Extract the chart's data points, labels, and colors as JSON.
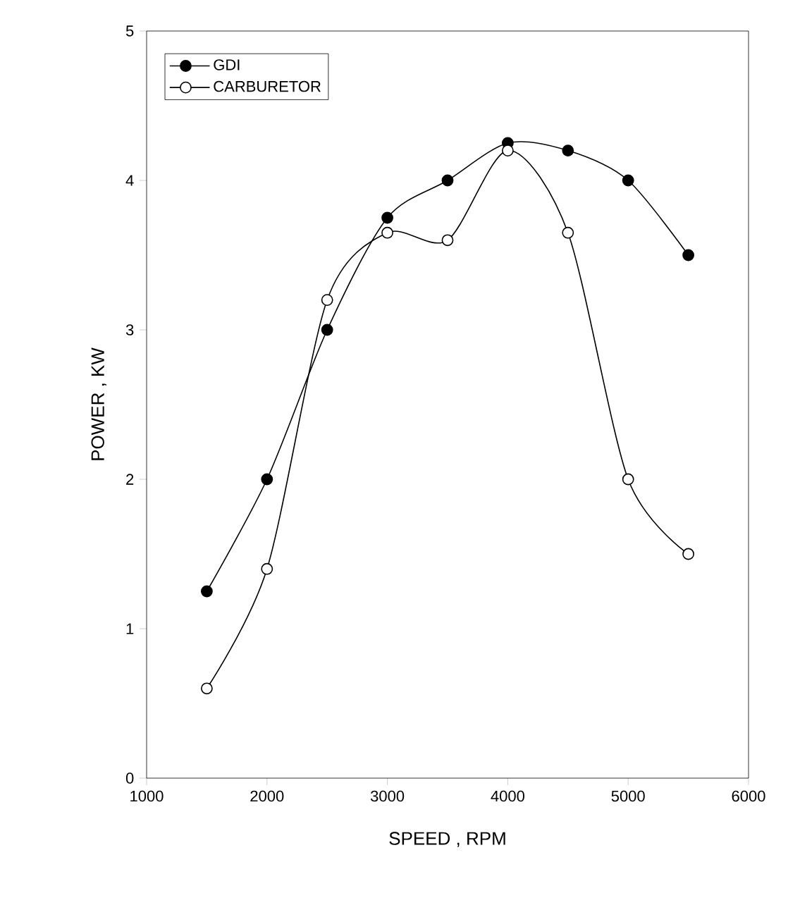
{
  "chart_data": {
    "type": "line",
    "xlabel": "SPEED , RPM",
    "ylabel": "POWER , KW",
    "x": [
      1500,
      2000,
      2500,
      3000,
      3500,
      4000,
      4500,
      5000,
      5500
    ],
    "series": [
      {
        "name": "GDI",
        "color": "#000000",
        "values": [
          1.25,
          2.0,
          3.0,
          3.75,
          4.0,
          4.25,
          4.2,
          4.0,
          3.5
        ]
      },
      {
        "name": "CARBURETOR",
        "color": "#ffffff",
        "values": [
          0.6,
          1.4,
          3.2,
          3.65,
          3.6,
          4.2,
          3.65,
          2.0,
          1.5
        ]
      }
    ],
    "xlim": [
      1000,
      6000
    ],
    "xticks": [
      1000,
      2000,
      3000,
      4000,
      5000,
      6000
    ],
    "ylim": [
      0,
      5
    ],
    "yticks": [
      0,
      1,
      2,
      3,
      4,
      5
    ],
    "grid": false,
    "legend": "top left",
    "marker": "circle",
    "line_style": "solid"
  }
}
